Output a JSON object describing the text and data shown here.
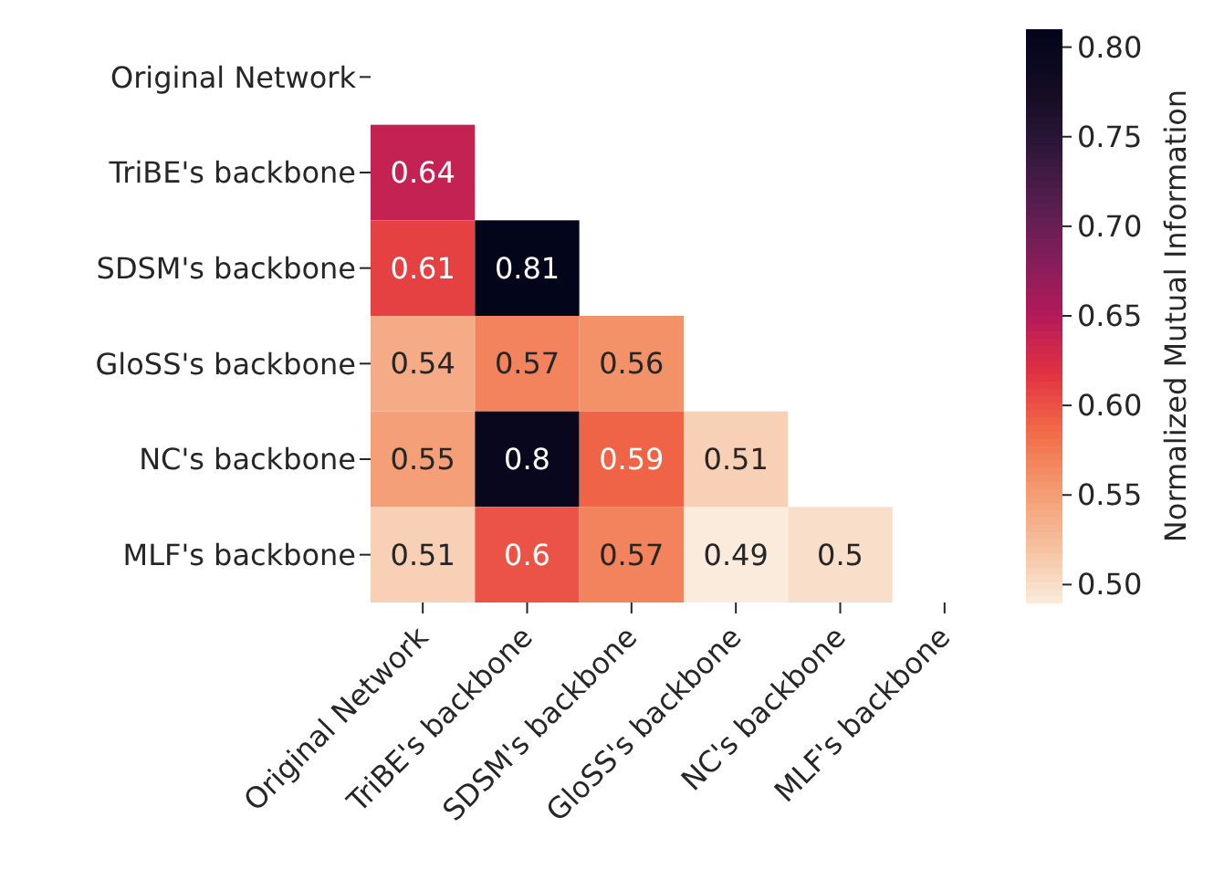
{
  "chart_data": {
    "type": "heatmap",
    "clabel": "Normalized Mutual Information",
    "categories": [
      "Original Network",
      "TriBE's backbone",
      "SDSM's backbone",
      "GloSS's backbone",
      "NC's backbone",
      "MLF's backbone"
    ],
    "y_categories": [
      "Original Network",
      "TriBE's backbone",
      "SDSM's backbone",
      "GloSS's backbone",
      "NC's backbone",
      "MLF's backbone"
    ],
    "cells": [
      [
        null,
        null,
        null,
        null,
        null,
        null
      ],
      [
        0.64,
        null,
        null,
        null,
        null,
        null
      ],
      [
        0.61,
        0.81,
        null,
        null,
        null,
        null
      ],
      [
        0.54,
        0.57,
        0.56,
        null,
        null,
        null
      ],
      [
        0.55,
        0.8,
        0.59,
        0.51,
        null,
        null
      ],
      [
        0.51,
        0.6,
        0.57,
        0.49,
        0.5,
        null
      ]
    ],
    "clim": [
      0.49,
      0.81
    ],
    "cticks": [
      {
        "value": 0.5,
        "label": "0.50"
      },
      {
        "value": 0.55,
        "label": "0.55"
      },
      {
        "value": 0.6,
        "label": "0.60"
      },
      {
        "value": 0.65,
        "label": "0.65"
      },
      {
        "value": 0.7,
        "label": "0.70"
      },
      {
        "value": 0.75,
        "label": "0.75"
      },
      {
        "value": 0.8,
        "label": "0.80"
      }
    ],
    "data_labels": true
  }
}
